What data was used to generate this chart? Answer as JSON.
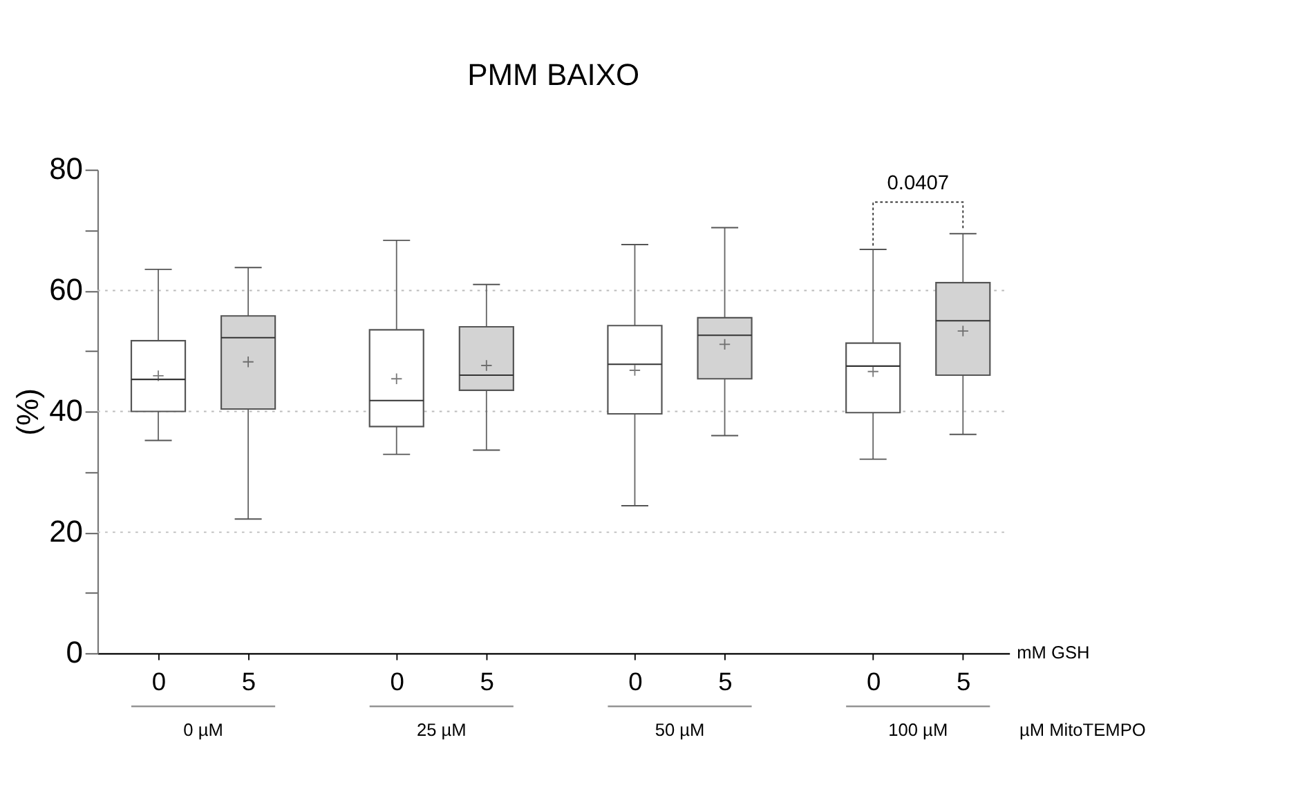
{
  "chart_data": {
    "type": "box",
    "title": "PMM BAIXO",
    "ylabel": "(%)",
    "xlabel": "mM GSH",
    "categories": [
      "0",
      "5",
      "0",
      "5",
      "0",
      "5",
      "0",
      "5"
    ],
    "colors": [
      "#ffffff",
      "#d3d3d3",
      "#ffffff",
      "#d3d3d3",
      "#ffffff",
      "#d3d3d3",
      "#ffffff",
      "#d3d3d3"
    ],
    "boxes": [
      {
        "low": 35.2,
        "q1": 40.0,
        "median": 45.3,
        "q3": 51.7,
        "high": 63.5,
        "mean": 45.9
      },
      {
        "low": 22.2,
        "q1": 40.4,
        "median": 52.2,
        "q3": 55.8,
        "high": 63.8,
        "mean": 48.2
      },
      {
        "low": 32.9,
        "q1": 37.5,
        "median": 41.8,
        "q3": 53.5,
        "high": 68.3,
        "mean": 45.4
      },
      {
        "low": 33.6,
        "q1": 43.5,
        "median": 46.0,
        "q3": 54.0,
        "high": 61.0,
        "mean": 47.6
      },
      {
        "low": 24.4,
        "q1": 39.6,
        "median": 47.8,
        "q3": 54.2,
        "high": 67.6,
        "mean": 46.8
      },
      {
        "low": 36.0,
        "q1": 45.4,
        "median": 52.6,
        "q3": 55.5,
        "high": 70.4,
        "mean": 51.1
      },
      {
        "low": 32.1,
        "q1": 39.8,
        "median": 47.5,
        "q3": 51.3,
        "high": 66.8,
        "mean": 46.6
      },
      {
        "low": 36.2,
        "q1": 46.0,
        "median": 55.0,
        "q3": 61.3,
        "high": 69.4,
        "mean": 53.3
      }
    ],
    "ylim": [
      0,
      80
    ],
    "yticks": [
      0,
      {
        "value": 10,
        "label": null
      },
      20,
      {
        "value": 30,
        "label": null
      },
      40,
      {
        "value": 50,
        "label": null
      },
      60,
      {
        "value": 70,
        "label": null
      },
      80
    ],
    "grid": "y",
    "annotations": [
      "0.0407",
      "0 µM",
      "25 µM",
      "50 µM",
      "100 µM",
      "µM MitoTEMPO"
    ]
  }
}
